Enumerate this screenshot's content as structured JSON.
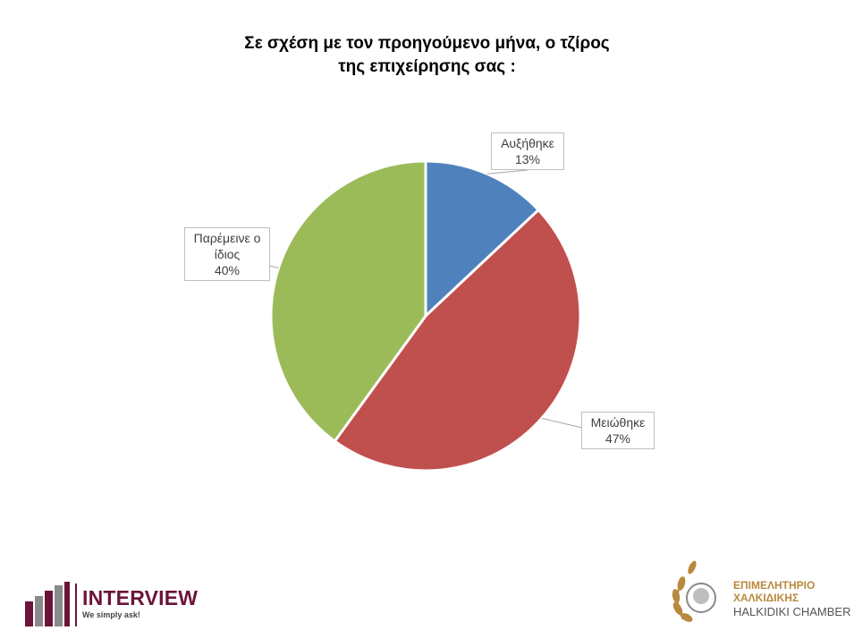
{
  "chart_data": {
    "type": "pie",
    "title_lines": [
      "Σε σχέση με τον προηγούμενο μήνα, ο τζίρος",
      "της επιχείρησης σας :"
    ],
    "slices": [
      {
        "label": "Αυξήθηκε",
        "value": 13,
        "display": "13%",
        "color": "#4f81bd"
      },
      {
        "label": "Μειώθηκε",
        "value": 47,
        "display": "47%",
        "color": "#c0504d"
      },
      {
        "label": "Παρέμεινε ο ίδιος",
        "value": 40,
        "display": "40%",
        "color": "#9bbb59"
      }
    ],
    "data_labels": [
      {
        "lines": [
          "Αυξήθηκε"
        ],
        "pct": "13%"
      },
      {
        "lines": [
          "Μειώθηκε"
        ],
        "pct": "47%"
      },
      {
        "lines": [
          "Παρέμεινε ο",
          "ίδιος"
        ],
        "pct": "40%"
      }
    ]
  },
  "logos": {
    "interview": {
      "name": "INTERVIEW",
      "tagline": "We simply ask!",
      "brand_color": "#6b1439"
    },
    "chamber": {
      "line1": "ΕΠΙΜΕΛΗΤΗΡΙΟ",
      "line2": "ΧΑΛΚΙΔΙΚΗΣ",
      "line3": "HALKIDIKI CHAMBER",
      "brand_color": "#b8893e"
    }
  }
}
